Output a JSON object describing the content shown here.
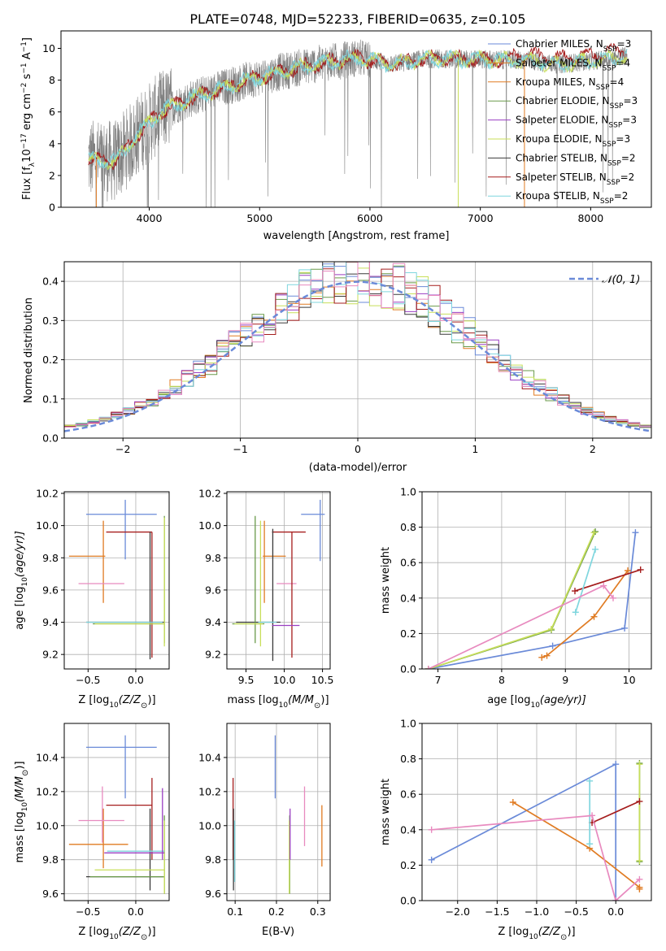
{
  "figure": {
    "title": "PLATE=0748, MJD=52233, FIBERID=0635, z=0.105"
  },
  "colors": {
    "blue": "#6a8ad8",
    "orange": "#e07b22",
    "green": "#6a9a4a",
    "purple": "#9a3fc2",
    "yellow": "#c8df5a",
    "dark": "#3a3a3a",
    "red": "#a51d1d",
    "cyan": "#7fd6de",
    "pink": "#e88abf",
    "data_gray": "#808080",
    "grid": "#b0b0b0",
    "gauss": "#6a8ad8"
  },
  "chart_data": [
    {
      "id": "spectrum",
      "type": "line",
      "xlabel": "wavelength [Angstrom, rest frame]",
      "ylabel_parts": [
        "Flux [f",
        "λ",
        "10",
        "−17",
        " erg cm",
        "−2",
        " s",
        "−1",
        " A",
        "−1",
        "]"
      ],
      "xlim": [
        3200,
        8550
      ],
      "ylim": [
        0,
        11.1
      ],
      "xticks": [
        4000,
        5000,
        6000,
        7000,
        8000
      ],
      "yticks": [
        0,
        2,
        4,
        6,
        8,
        10
      ],
      "legend": {
        "placement": "top-right",
        "entries": [
          {
            "pre": "Chabrier MILES, N",
            "sub": "SSP",
            "post": "=3",
            "color": "#6a8ad8"
          },
          {
            "pre": "Salpeter MILES, N",
            "sub": "SSP",
            "post": "=4",
            "color": "#e07b22"
          },
          {
            "pre": "Kroupa MILES, N",
            "sub": "SSP",
            "post": "=4",
            "color": "#e07b22"
          },
          {
            "pre": "Chabrier ELODIE, N",
            "sub": "SSP",
            "post": "=3",
            "color": "#6a9a4a"
          },
          {
            "pre": "Salpeter ELODIE, N",
            "sub": "SSP",
            "post": "=3",
            "color": "#9a3fc2"
          },
          {
            "pre": "Kroupa ELODIE, N",
            "sub": "SSP",
            "post": "=3",
            "color": "#c8df5a"
          },
          {
            "pre": "Chabrier STELIB, N",
            "sub": "SSP",
            "post": "=2",
            "color": "#3a3a3a"
          },
          {
            "pre": "Salpeter STELIB, N",
            "sub": "SSP",
            "post": "=2",
            "color": "#a51d1d"
          },
          {
            "pre": "Kroupa STELIB, N",
            "sub": "SSP",
            "post": "=2",
            "color": "#7fd6de"
          }
        ]
      },
      "continuum_knots": [
        [
          3450,
          3.0
        ],
        [
          3700,
          2.9
        ],
        [
          3900,
          4.6
        ],
        [
          4100,
          6.0
        ],
        [
          4400,
          6.9
        ],
        [
          4700,
          7.6
        ],
        [
          5000,
          8.2
        ],
        [
          5300,
          8.7
        ],
        [
          5600,
          9.1
        ],
        [
          5900,
          9.4
        ],
        [
          6200,
          9.0
        ],
        [
          6500,
          9.35
        ],
        [
          7000,
          9.3
        ],
        [
          7400,
          9.25
        ],
        [
          7700,
          9.0
        ],
        [
          8000,
          9.2
        ],
        [
          8300,
          9.5
        ]
      ],
      "model_series_colors": [
        "#a51d1d",
        "#c8df5a",
        "#7fd6de"
      ]
    },
    {
      "id": "residuals",
      "type": "area",
      "xlabel": "(data-model)/error",
      "ylabel": "Normed distribution",
      "xlim": [
        -2.5,
        2.5
      ],
      "ylim": [
        0,
        0.45
      ],
      "xticks": [
        -2,
        -1,
        0,
        1,
        2
      ],
      "yticks": [
        0,
        0.1,
        0.2,
        0.3,
        0.4
      ],
      "legend": {
        "label": "𝒩(0, 1)",
        "placement": "top-right"
      },
      "bin_width": 0.1,
      "hist_colors": [
        "#6a8ad8",
        "#e07b22",
        "#6a9a4a",
        "#9a3fc2",
        "#c8df5a",
        "#3a3a3a",
        "#a51d1d",
        "#7fd6de",
        "#e88abf"
      ]
    },
    {
      "id": "z-age",
      "type": "scatter",
      "xlabel_pre": "Z [log",
      "xlabel_sub": "10",
      "xlabel_post": "(Z/Z",
      "xlabel_end": ")]",
      "ylabel_parts": [
        "age  [log",
        "10",
        "(age/yr)]"
      ],
      "xlim": [
        -0.75,
        0.35
      ],
      "ylim": [
        9.11,
        10.21
      ],
      "xticks": [
        -0.5,
        0.0
      ],
      "xtick_labels": [
        "−0.5",
        "0.0"
      ],
      "yticks": [
        9.2,
        9.4,
        9.6,
        9.8,
        10.0,
        10.2
      ],
      "errorbars": [
        {
          "c": "#6a8ad8",
          "x": -0.11,
          "y": 10.07,
          "xe": [
            -0.52,
            0.22
          ],
          "ye": [
            9.79,
            10.16
          ]
        },
        {
          "c": "#e07b22",
          "x": -0.34,
          "y": 9.81,
          "xe": [
            -0.7,
            -0.32
          ],
          "ye": [
            9.52,
            10.03
          ]
        },
        {
          "c": "#e88abf",
          "x": -0.35,
          "y": 9.64,
          "xe": [
            -0.6,
            -0.12
          ],
          "ye": [
            9.64,
            9.64
          ]
        },
        {
          "c": "#a51d1d",
          "x": 0.17,
          "y": 9.96,
          "xe": [
            -0.31,
            0.17
          ],
          "ye": [
            9.18,
            9.96
          ]
        },
        {
          "c": "#3a3a3a",
          "x": 0.15,
          "y": 9.4,
          "xe": [
            -0.52,
            0.3
          ],
          "ye": [
            9.17,
            9.96
          ]
        },
        {
          "c": "#6a9a4a",
          "x": 0.3,
          "y": 9.39,
          "xe": [
            -0.45,
            0.3
          ],
          "ye": [
            9.27,
            10.06
          ]
        },
        {
          "c": "#c8df5a",
          "x": 0.3,
          "y": 9.39,
          "xe": [
            -0.43,
            0.3
          ],
          "ye": [
            9.25,
            10.05
          ]
        },
        {
          "c": "#7fd6de",
          "x": 0.15,
          "y": 9.4,
          "xe": [
            -0.52,
            0.28
          ],
          "ye": [
            9.4,
            9.4
          ]
        }
      ]
    },
    {
      "id": "mass-age",
      "type": "scatter",
      "xlabel_parts": [
        "mass [log",
        "10",
        "(M/M",
        ")]"
      ],
      "xlim": [
        9.25,
        10.6
      ],
      "ylim": [
        9.11,
        10.21
      ],
      "xticks": [
        9.5,
        10.0,
        10.5
      ],
      "yticks": [
        9.2,
        9.4,
        9.6,
        9.8,
        10.0,
        10.2
      ],
      "errorbars": [
        {
          "c": "#6a8ad8",
          "x": 10.47,
          "y": 10.07,
          "xe": [
            10.22,
            10.53
          ],
          "ye": [
            9.78,
            10.16
          ]
        },
        {
          "c": "#e07b22",
          "x": 9.74,
          "y": 9.81,
          "xe": [
            9.72,
            10.02
          ],
          "ye": [
            9.52,
            10.03
          ]
        },
        {
          "c": "#e88abf",
          "x": 10.02,
          "y": 9.64,
          "xe": [
            9.9,
            10.16
          ],
          "ye": [
            9.64,
            9.64
          ]
        },
        {
          "c": "#a51d1d",
          "x": 10.1,
          "y": 9.96,
          "xe": [
            9.84,
            10.28
          ],
          "ye": [
            9.18,
            9.96
          ]
        },
        {
          "c": "#3a3a3a",
          "x": 9.85,
          "y": 9.4,
          "xe": [
            9.37,
            9.95
          ],
          "ye": [
            9.16,
            9.98
          ]
        },
        {
          "c": "#6a9a4a",
          "x": 9.62,
          "y": 9.39,
          "xe": [
            9.32,
            9.74
          ],
          "ye": [
            9.27,
            10.06
          ]
        },
        {
          "c": "#c8df5a",
          "x": 9.69,
          "y": 9.39,
          "xe": [
            9.35,
            9.72
          ],
          "ye": [
            9.25,
            10.03
          ]
        },
        {
          "c": "#7fd6de",
          "x": 9.86,
          "y": 9.4,
          "xe": [
            9.66,
            9.9
          ],
          "ye": [
            9.4,
            9.4
          ]
        },
        {
          "c": "#9a3fc2",
          "x": 10.18,
          "y": 9.38,
          "xe": [
            9.84,
            10.2
          ],
          "ye": [
            9.38,
            9.38
          ]
        }
      ]
    },
    {
      "id": "age-weight",
      "type": "line",
      "xlabel_parts": [
        "age  [log",
        "10",
        "(age/yr)]"
      ],
      "ylabel": "mass weight",
      "xlim": [
        6.75,
        10.35
      ],
      "ylim": [
        0,
        1
      ],
      "xticks": [
        7,
        8,
        9,
        10
      ],
      "yticks": [
        0.0,
        0.2,
        0.4,
        0.6,
        0.8,
        1.0
      ],
      "series": [
        {
          "c": "#6a8ad8",
          "x": [
            6.85,
            8.8,
            9.93,
            10.1
          ],
          "y": [
            0.0,
            0.13,
            0.23,
            0.77
          ]
        },
        {
          "c": "#e07b22",
          "x": [
            8.63,
            8.71,
            9.45,
            9.98
          ],
          "y": [
            0.065,
            0.075,
            0.295,
            0.555
          ]
        },
        {
          "c": "#6a9a4a",
          "x": [
            6.85,
            8.78,
            9.47
          ],
          "y": [
            0.0,
            0.22,
            0.775
          ]
        },
        {
          "c": "#c8df5a",
          "x": [
            6.85,
            8.78,
            9.45
          ],
          "y": [
            0.0,
            0.225,
            0.77
          ]
        },
        {
          "c": "#a51d1d",
          "x": [
            9.15,
            10.18
          ],
          "y": [
            0.44,
            0.56
          ]
        },
        {
          "c": "#7fd6de",
          "x": [
            9.16,
            9.47
          ],
          "y": [
            0.32,
            0.675
          ]
        },
        {
          "c": "#e88abf",
          "x": [
            6.85,
            9.6,
            9.75
          ],
          "y": [
            0.0,
            0.47,
            0.4
          ]
        }
      ]
    },
    {
      "id": "z-mass",
      "type": "scatter",
      "xlabel_pre": "Z [log",
      "xlabel_sub": "10",
      "xlabel_post": "(Z/Z",
      "xlabel_end": ")]",
      "ylabel_parts": [
        "mass [log",
        "10",
        "(M/M",
        ")]"
      ],
      "xlim": [
        -0.75,
        0.35
      ],
      "ylim": [
        9.56,
        10.6
      ],
      "xticks": [
        -0.5,
        0.0
      ],
      "xtick_labels": [
        "−0.5",
        "0.0"
      ],
      "yticks": [
        9.6,
        9.8,
        10.0,
        10.2,
        10.4
      ],
      "errorbars": [
        {
          "c": "#6a8ad8",
          "x": -0.11,
          "y": 10.46,
          "xe": [
            -0.52,
            0.22
          ],
          "ye": [
            10.16,
            10.53
          ]
        },
        {
          "c": "#e07b22",
          "x": -0.34,
          "y": 9.89,
          "xe": [
            -0.7,
            -0.08
          ],
          "ye": [
            9.75,
            10.1
          ]
        },
        {
          "c": "#e88abf",
          "x": -0.35,
          "y": 10.03,
          "xe": [
            -0.6,
            -0.12
          ],
          "ye": [
            9.9,
            10.23
          ]
        },
        {
          "c": "#a51d1d",
          "x": 0.17,
          "y": 10.12,
          "xe": [
            -0.31,
            0.17
          ],
          "ye": [
            9.8,
            10.28
          ]
        },
        {
          "c": "#3a3a3a",
          "x": 0.15,
          "y": 9.7,
          "xe": [
            -0.52,
            0.3
          ],
          "ye": [
            9.62,
            10.1
          ]
        },
        {
          "c": "#6a9a4a",
          "x": 0.3,
          "y": 9.7,
          "xe": [
            -0.48,
            0.3
          ],
          "ye": [
            9.6,
            10.06
          ]
        },
        {
          "c": "#c8df5a",
          "x": 0.3,
          "y": 9.74,
          "xe": [
            -0.43,
            0.3
          ],
          "ye": [
            9.6,
            10.03
          ]
        },
        {
          "c": "#7fd6de",
          "x": 0.15,
          "y": 9.85,
          "xe": [
            -0.3,
            0.3
          ],
          "ye": [
            9.85,
            9.85
          ]
        },
        {
          "c": "#9a3fc2",
          "x": 0.28,
          "y": 9.84,
          "xe": [
            -0.33,
            0.3
          ],
          "ye": [
            9.8,
            10.22
          ]
        }
      ]
    },
    {
      "id": "ebv-mass",
      "type": "scatter",
      "xlabel": "E(B-V)",
      "xlim": [
        0.08,
        0.33
      ],
      "ylim": [
        9.56,
        10.6
      ],
      "xticks": [
        0.1,
        0.2,
        0.3
      ],
      "yticks": [
        9.6,
        9.8,
        10.0,
        10.2,
        10.4
      ],
      "errorbars": [
        {
          "c": "#6a8ad8",
          "x": 0.197,
          "y": 10.46,
          "xe": [
            0.197,
            0.197
          ],
          "ye": [
            10.16,
            10.53
          ]
        },
        {
          "c": "#e07b22",
          "x": 0.31,
          "y": 9.89,
          "xe": [
            0.31,
            0.31
          ],
          "ye": [
            9.76,
            10.12
          ]
        },
        {
          "c": "#e88abf",
          "x": 0.268,
          "y": 10.03,
          "xe": [
            0.268,
            0.268
          ],
          "ye": [
            9.88,
            10.23
          ]
        },
        {
          "c": "#a51d1d",
          "x": 0.095,
          "y": 10.12,
          "xe": [
            0.095,
            0.095
          ],
          "ye": [
            9.8,
            10.28
          ]
        },
        {
          "c": "#3a3a3a",
          "x": 0.096,
          "y": 9.7,
          "xe": [
            0.096,
            0.096
          ],
          "ye": [
            9.62,
            10.1
          ]
        },
        {
          "c": "#6a9a4a",
          "x": 0.232,
          "y": 9.7,
          "xe": [
            0.232,
            0.232
          ],
          "ye": [
            9.6,
            10.06
          ]
        },
        {
          "c": "#c8df5a",
          "x": 0.231,
          "y": 9.74,
          "xe": [
            0.231,
            0.231
          ],
          "ye": [
            9.6,
            10.03
          ]
        },
        {
          "c": "#7fd6de",
          "x": 0.099,
          "y": 9.85,
          "xe": [
            0.099,
            0.099
          ],
          "ye": [
            9.67,
            10.03
          ]
        },
        {
          "c": "#9a3fc2",
          "x": 0.233,
          "y": 9.84,
          "xe": [
            0.233,
            0.233
          ],
          "ye": [
            9.8,
            10.1
          ]
        }
      ]
    },
    {
      "id": "z-weight",
      "type": "line",
      "xlabel_pre": "Z [log",
      "xlabel_sub": "10",
      "xlabel_post": "(Z/Z",
      "xlabel_end": ")]",
      "ylabel": "mass weight",
      "xlim": [
        -2.45,
        0.45
      ],
      "ylim": [
        0,
        1
      ],
      "xticks": [
        -2.0,
        -1.5,
        -1.0,
        -0.5,
        0.0
      ],
      "xtick_labels": [
        "−2.0",
        "−1.5",
        "−1.0",
        "−0.5",
        "0.0"
      ],
      "yticks": [
        0.0,
        0.2,
        0.4,
        0.6,
        0.8,
        1.0
      ],
      "series": [
        {
          "c": "#6a8ad8",
          "x": [
            -2.33,
            0.0,
            0.0
          ],
          "y": [
            0.23,
            0.77,
            0.0
          ]
        },
        {
          "c": "#e07b22",
          "x": [
            -1.3,
            -0.33,
            0.3,
            0.3
          ],
          "y": [
            0.555,
            0.295,
            0.075,
            0.065
          ]
        },
        {
          "c": "#6a9a4a",
          "x": [
            0.3,
            0.3
          ],
          "y": [
            0.22,
            0.775
          ]
        },
        {
          "c": "#c8df5a",
          "x": [
            0.3,
            0.3
          ],
          "y": [
            0.225,
            0.77
          ]
        },
        {
          "c": "#a51d1d",
          "x": [
            -0.3,
            0.3
          ],
          "y": [
            0.44,
            0.56
          ]
        },
        {
          "c": "#7fd6de",
          "x": [
            -0.33,
            -0.33
          ],
          "y": [
            0.32,
            0.675
          ]
        },
        {
          "c": "#e88abf",
          "x": [
            -2.33,
            -0.3,
            0.0,
            0.3
          ],
          "y": [
            0.4,
            0.48,
            0.0,
            0.12
          ]
        }
      ]
    }
  ]
}
